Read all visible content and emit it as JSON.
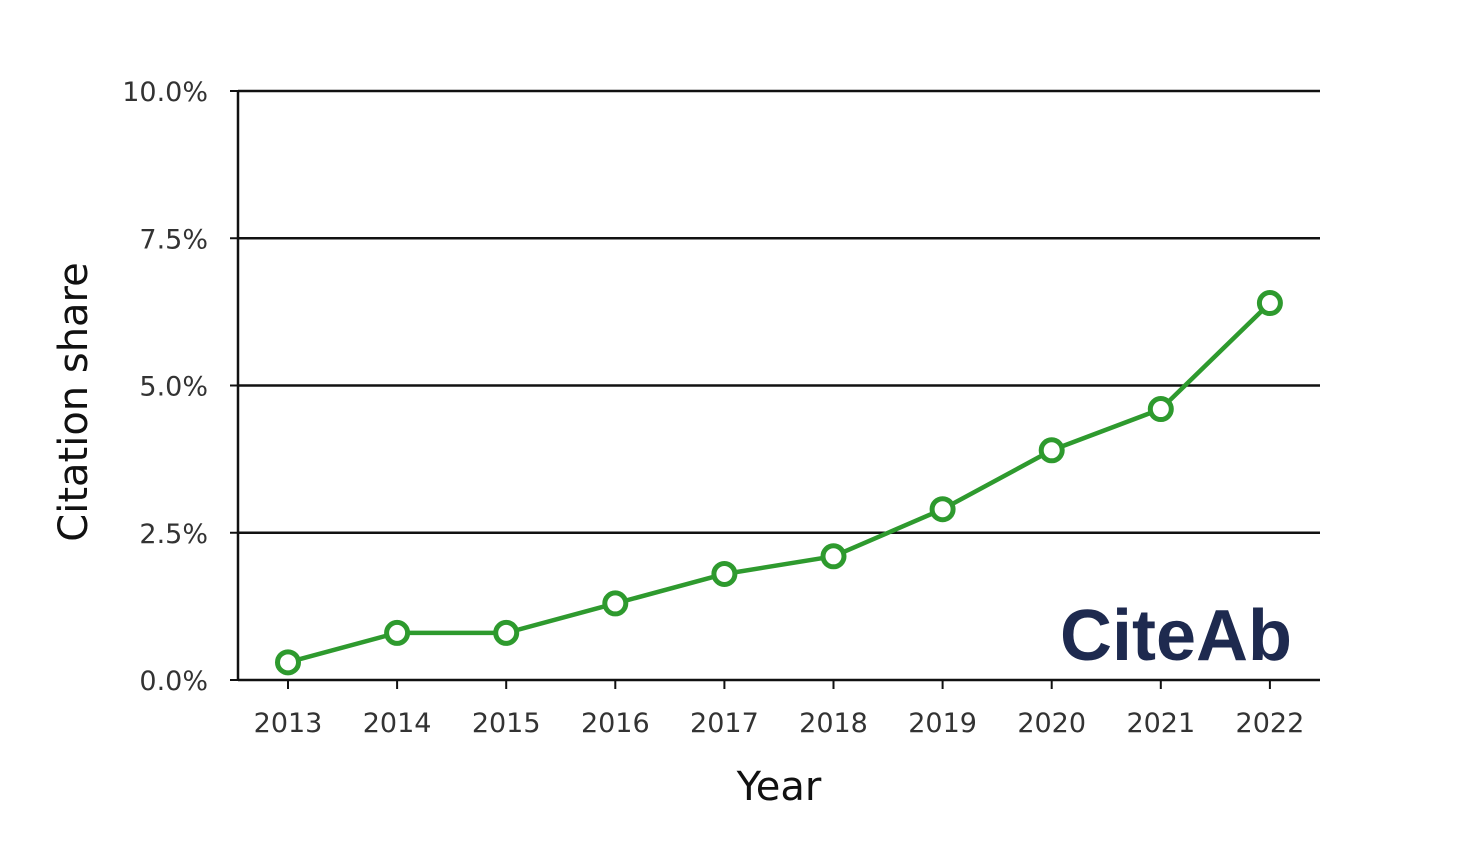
{
  "chart_data": {
    "type": "line",
    "title": "",
    "xlabel": "Year",
    "ylabel": "Citation share",
    "categories": [
      "2013",
      "2014",
      "2015",
      "2016",
      "2017",
      "2018",
      "2019",
      "2020",
      "2021",
      "2022"
    ],
    "series": [
      {
        "values": [
          0.3,
          0.8,
          0.8,
          1.3,
          1.8,
          2.1,
          2.9,
          3.9,
          4.6,
          6.4
        ]
      }
    ],
    "y_ticks": [
      "0.0%",
      "2.5%",
      "5.0%",
      "7.5%",
      "10.0%"
    ],
    "ylim": [
      0,
      10
    ],
    "y_unit": "%",
    "grid": "horizontal",
    "line_color": "#2e9a2e",
    "grid_color": "#111111"
  },
  "brand": {
    "text": "CiteAb",
    "color": "#1e2a4f"
  }
}
